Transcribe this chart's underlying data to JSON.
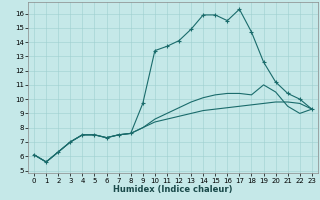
{
  "title": "",
  "xlabel": "Humidex (Indice chaleur)",
  "background_color": "#c5e8e8",
  "grid_color": "#9fcfcf",
  "line_color": "#1a6b6b",
  "xlim": [
    -0.5,
    23.5
  ],
  "ylim": [
    4.8,
    16.8
  ],
  "yticks": [
    5,
    6,
    7,
    8,
    9,
    10,
    11,
    12,
    13,
    14,
    15,
    16
  ],
  "xticks": [
    0,
    1,
    2,
    3,
    4,
    5,
    6,
    7,
    8,
    9,
    10,
    11,
    12,
    13,
    14,
    15,
    16,
    17,
    18,
    19,
    20,
    21,
    22,
    23
  ],
  "line1_x": [
    0,
    1,
    2,
    3,
    4,
    5,
    6,
    7,
    8,
    9,
    10,
    11,
    12,
    13,
    14,
    15,
    16,
    17,
    18,
    19,
    20,
    21,
    22,
    23
  ],
  "line1_y": [
    6.1,
    5.6,
    6.3,
    7.0,
    7.5,
    7.5,
    7.3,
    7.5,
    7.6,
    9.7,
    13.4,
    13.7,
    14.1,
    14.9,
    15.9,
    15.9,
    15.5,
    16.3,
    14.7,
    12.6,
    11.2,
    10.4,
    10.0,
    9.3
  ],
  "line2_x": [
    0,
    1,
    2,
    3,
    4,
    5,
    6,
    7,
    8,
    9,
    10,
    11,
    12,
    13,
    14,
    15,
    16,
    17,
    18,
    19,
    20,
    21,
    22,
    23
  ],
  "line2_y": [
    6.1,
    5.6,
    6.3,
    7.0,
    7.5,
    7.5,
    7.3,
    7.5,
    7.6,
    8.0,
    8.4,
    8.6,
    8.8,
    9.0,
    9.2,
    9.3,
    9.4,
    9.5,
    9.6,
    9.7,
    9.8,
    9.8,
    9.7,
    9.3
  ],
  "line3_x": [
    0,
    1,
    2,
    3,
    4,
    5,
    6,
    7,
    8,
    9,
    10,
    11,
    12,
    13,
    14,
    15,
    16,
    17,
    18,
    19,
    20,
    21,
    22,
    23
  ],
  "line3_y": [
    6.1,
    5.6,
    6.3,
    7.0,
    7.5,
    7.5,
    7.3,
    7.5,
    7.6,
    8.0,
    8.6,
    9.0,
    9.4,
    9.8,
    10.1,
    10.3,
    10.4,
    10.4,
    10.3,
    11.0,
    10.5,
    9.5,
    9.0,
    9.3
  ],
  "xlabel_fontsize": 6,
  "tick_fontsize": 5,
  "linewidth": 0.8,
  "marker_size": 3
}
